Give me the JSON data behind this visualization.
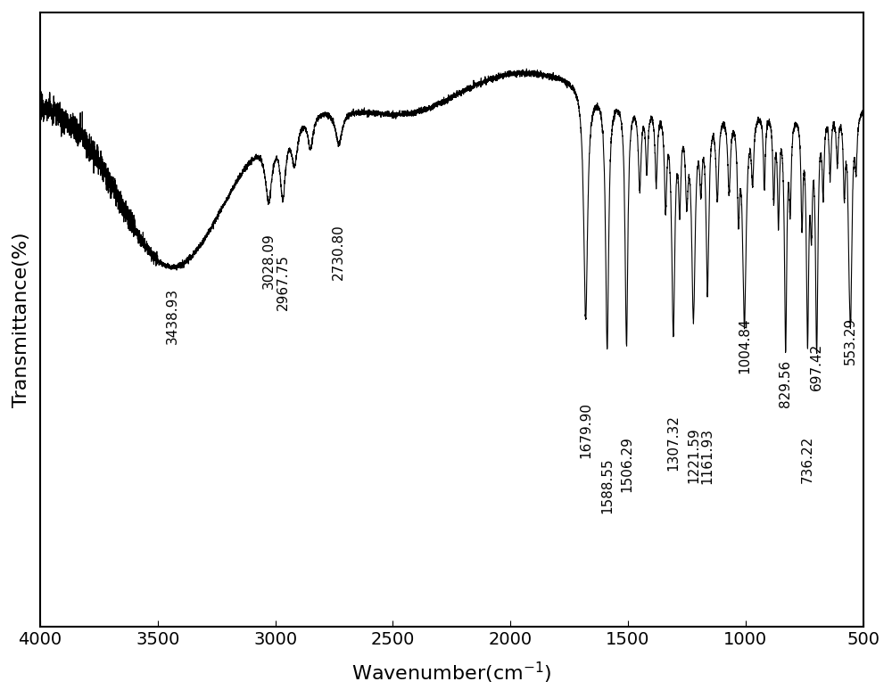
{
  "xlabel": "Wavenumber(cm$^{-1}$)",
  "ylabel": "Transmittance(%)",
  "xlim": [
    4000,
    500
  ],
  "background_color": "#ffffff",
  "line_color": "#000000",
  "xticks": [
    4000,
    3500,
    3000,
    2500,
    2000,
    1500,
    1000,
    500
  ],
  "axis_label_fontsize": 16,
  "tick_fontsize": 14,
  "annotation_fontsize": 11,
  "peak_labels": [
    {
      "wn": 3438.93,
      "label": "3438.93"
    },
    {
      "wn": 3028.09,
      "label": "3028.09"
    },
    {
      "wn": 2967.75,
      "label": "2967.75"
    },
    {
      "wn": 2730.8,
      "label": "2730.80"
    },
    {
      "wn": 1679.9,
      "label": "1679.90"
    },
    {
      "wn": 1588.55,
      "label": "1588.55"
    },
    {
      "wn": 1506.29,
      "label": "1506.29"
    },
    {
      "wn": 1307.32,
      "label": "1307.32"
    },
    {
      "wn": 1221.59,
      "label": "1221.59"
    },
    {
      "wn": 1161.93,
      "label": "1161.93"
    },
    {
      "wn": 1004.84,
      "label": "1004.84"
    },
    {
      "wn": 829.56,
      "label": "829.56"
    },
    {
      "wn": 736.22,
      "label": "736.22"
    },
    {
      "wn": 697.42,
      "label": "697.42"
    },
    {
      "wn": 553.29,
      "label": "553.29"
    }
  ]
}
